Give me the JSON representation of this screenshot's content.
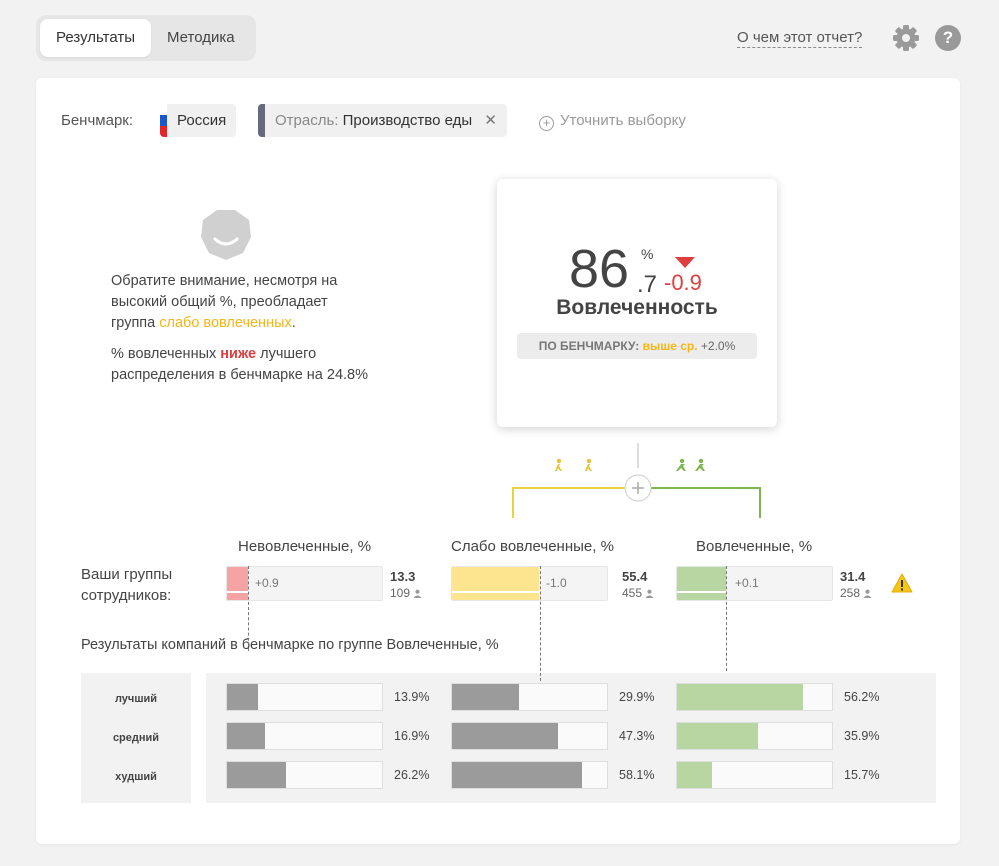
{
  "tabs": [
    {
      "label": "Результаты",
      "active": true
    },
    {
      "label": "Методика",
      "active": false
    }
  ],
  "header": {
    "help_link": "О чем этот отчет?",
    "settings_icon": "gear-icon",
    "help_icon": "?"
  },
  "benchmark": {
    "label": "Бенчмарк:",
    "country": "Россия",
    "industry_key": "Отрасль:",
    "industry_value": "Производство еды",
    "remove": "✕",
    "refine": "Уточнить выборку",
    "refine_icon": "+"
  },
  "note": {
    "p1_before": "Обратите внимание, несмотря на высокий общий %, преобладает группа ",
    "p1_highlight": "слабо вовлеченных",
    "p1_after": ".",
    "p2_before": "% вовлеченных ",
    "p2_highlight": "ниже",
    "p2_after": " лучшего распределения в бенчмарке на 24.8%"
  },
  "score": {
    "integer": "86",
    "decimal": ".7",
    "unit": "%",
    "delta": "-0.9",
    "title": "Вовлеченность",
    "bench_label": "ПО БЕНЧМАРКУ:",
    "bench_status": "выше ср.",
    "bench_delta": "+2.0%"
  },
  "colors": {
    "disengaged": "#f5a3a3",
    "weak": "#fde48f",
    "engaged": "#b7d6a1",
    "benchmark_bar": "#9b9b9b",
    "accent_yellow": "#f5b614",
    "accent_red": "#e03e3e",
    "tree_yellow": "#e6d43a",
    "tree_green": "#7fb44e"
  },
  "groups": {
    "row_label": "Ваши группы сотрудников:",
    "columns": [
      {
        "title": "Невовлеченные, %",
        "delta": "+0.9",
        "value": "13.3",
        "count": "109",
        "fill_pct": 13.3,
        "bench_pct": 13.9,
        "color": "#f5a3a3"
      },
      {
        "title": "Слабо вовлеченные, %",
        "delta": "-1.0",
        "value": "55.4",
        "count": "455",
        "fill_pct": 55.4,
        "bench_pct": 56.8,
        "color": "#fde48f"
      },
      {
        "title": "Вовлеченные, %",
        "delta": "+0.1",
        "value": "31.4",
        "count": "258",
        "fill_pct": 31.4,
        "bench_pct": 31.6,
        "color": "#b7d6a1"
      }
    ]
  },
  "benchmark_results": {
    "title": "Результаты компаний в бенчмарке по группе Вовлеченные, %",
    "rows": [
      {
        "label": "лучший",
        "values": [
          13.9,
          29.9,
          56.2
        ],
        "labels": [
          "13.9%",
          "29.9%",
          "56.2%"
        ]
      },
      {
        "label": "средний",
        "values": [
          16.9,
          47.3,
          35.9
        ],
        "labels": [
          "16.9%",
          "47.3%",
          "35.9%"
        ]
      },
      {
        "label": "худший",
        "values": [
          26.2,
          58.1,
          15.7
        ],
        "labels": [
          "26.2%",
          "58.1%",
          "15.7%"
        ]
      }
    ]
  }
}
